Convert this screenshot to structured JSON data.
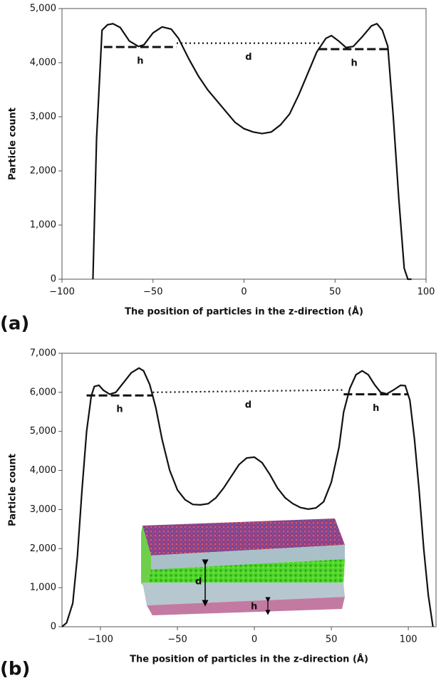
{
  "chart_data": [
    {
      "type": "line",
      "panel_label": "(a)",
      "xlabel": "The position of particles in the z-direction (Å)",
      "ylabel": "Particle count",
      "xlim": [
        -100,
        100
      ],
      "xticks": [
        {
          "value": -100,
          "label": "−100"
        },
        {
          "value": -50,
          "label": "−50"
        },
        0,
        50,
        100
      ],
      "ylim": [
        0,
        5000
      ],
      "yticks": [
        0,
        {
          "value": 1000,
          "label": "1,000"
        },
        {
          "value": 2000,
          "label": "2,000"
        },
        {
          "value": 3000,
          "label": "3,000"
        },
        {
          "value": 4000,
          "label": "4,000"
        },
        {
          "value": 5000,
          "label": "5,000"
        }
      ],
      "color": "#111111",
      "x": [
        -83,
        -81,
        -78,
        -75,
        -72,
        -68,
        -63,
        -58,
        -55,
        -50,
        -45,
        -40,
        -36,
        -30,
        -25,
        -20,
        -15,
        -10,
        -5,
        0,
        5,
        10,
        15,
        20,
        25,
        30,
        35,
        40,
        45,
        48,
        52,
        56,
        60,
        65,
        70,
        73,
        76,
        79,
        82,
        85,
        88,
        90,
        92
      ],
      "values": [
        0,
        2600,
        4600,
        4700,
        4720,
        4650,
        4400,
        4300,
        4330,
        4550,
        4660,
        4620,
        4450,
        4050,
        3750,
        3500,
        3300,
        3100,
        2900,
        2780,
        2720,
        2690,
        2720,
        2850,
        3050,
        3400,
        3800,
        4200,
        4450,
        4500,
        4400,
        4280,
        4300,
        4480,
        4680,
        4720,
        4600,
        4300,
        3000,
        1500,
        200,
        0,
        0
      ],
      "reference_lines": [
        {
          "label": "h",
          "style": "dashed",
          "x": [
            -77,
            -37
          ],
          "values": [
            4290,
            4290
          ]
        },
        {
          "label": "d",
          "style": "dotted",
          "x": [
            -37,
            42
          ],
          "values": [
            4360,
            4360
          ]
        },
        {
          "label": "h",
          "style": "dashed",
          "x": [
            41,
            80
          ],
          "values": [
            4250,
            4250
          ]
        }
      ]
    },
    {
      "type": "line",
      "panel_label": "(b)",
      "xlabel": "The position of particles in the z-direction (Å)",
      "ylabel": "Particle count",
      "xlim": [
        -125,
        118
      ],
      "xticks": [
        {
          "value": -100,
          "label": "−100"
        },
        {
          "value": -50,
          "label": "−50"
        },
        0,
        50,
        100
      ],
      "ylim": [
        0,
        7000
      ],
      "yticks": [
        0,
        {
          "value": 1000,
          "label": "1,000"
        },
        {
          "value": 2000,
          "label": "2,000"
        },
        {
          "value": 3000,
          "label": "3,000"
        },
        {
          "value": 4000,
          "label": "4,000"
        },
        {
          "value": 5000,
          "label": "5,000"
        },
        {
          "value": 6000,
          "label": "6,000"
        },
        {
          "value": 7000,
          "label": "7,000"
        }
      ],
      "color": "#111111",
      "x": [
        -125,
        -122,
        -118,
        -115,
        -112,
        -109,
        -106,
        -104,
        -101,
        -98,
        -94,
        -90,
        -85,
        -80,
        -75,
        -72,
        -68,
        -64,
        -60,
        -55,
        -50,
        -45,
        -40,
        -35,
        -30,
        -25,
        -20,
        -15,
        -10,
        -5,
        0,
        5,
        10,
        15,
        20,
        25,
        30,
        35,
        40,
        45,
        50,
        55,
        58,
        62,
        66,
        70,
        74,
        78,
        82,
        86,
        90,
        95,
        98,
        101,
        104,
        107,
        110,
        113,
        116
      ],
      "values": [
        0,
        100,
        600,
        1800,
        3500,
        5000,
        5900,
        6150,
        6180,
        6050,
        5950,
        6000,
        6250,
        6500,
        6620,
        6550,
        6200,
        5600,
        4800,
        4000,
        3500,
        3250,
        3130,
        3120,
        3150,
        3300,
        3550,
        3850,
        4150,
        4320,
        4340,
        4200,
        3900,
        3550,
        3300,
        3150,
        3050,
        3010,
        3040,
        3200,
        3700,
        4600,
        5500,
        6100,
        6450,
        6550,
        6450,
        6200,
        6000,
        5960,
        6050,
        6180,
        6170,
        5800,
        4800,
        3500,
        2000,
        800,
        0
      ],
      "reference_lines": [
        {
          "label": "h",
          "style": "dashed",
          "x": [
            -109,
            -66
          ],
          "values": [
            5920,
            5920
          ]
        },
        {
          "label": "d",
          "style": "dotted",
          "x": [
            -66,
            58
          ],
          "values": [
            6000,
            6060
          ]
        },
        {
          "label": "h",
          "style": "dashed",
          "x": [
            58,
            100
          ],
          "values": [
            5950,
            5950
          ]
        }
      ],
      "inset_labels": [
        "d",
        "h"
      ]
    }
  ]
}
